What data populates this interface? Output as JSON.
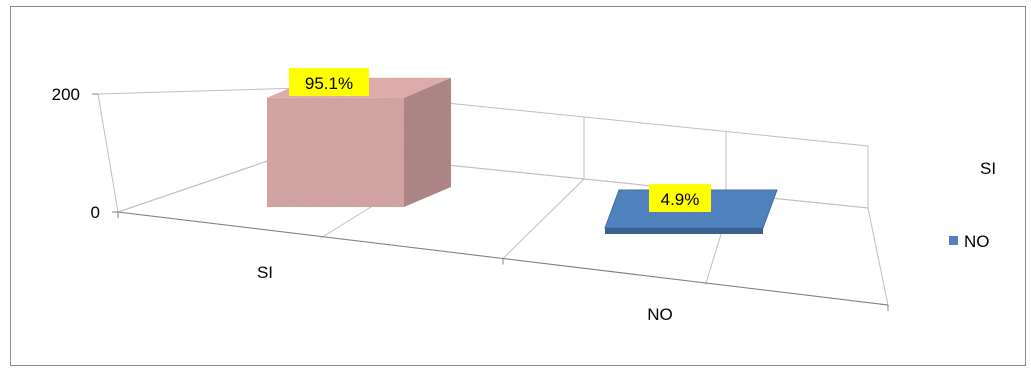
{
  "chart_data": {
    "type": "bar",
    "categories": [
      "SI",
      "NO"
    ],
    "series": [
      {
        "values": [
          195,
          10
        ],
        "labels": [
          "95.1%",
          "4.9%"
        ]
      }
    ],
    "y_ticks": [
      "0",
      "200"
    ],
    "ylim": [
      0,
      200
    ],
    "legend": {
      "placement": "right",
      "entries": [
        "SI",
        "NO"
      ]
    },
    "grid": true,
    "colors": {
      "bar_si": "#d9aaa8",
      "bar_no": "#4f81bd",
      "label_bg": "#ffff00",
      "grid": "#bfbfbf"
    }
  }
}
